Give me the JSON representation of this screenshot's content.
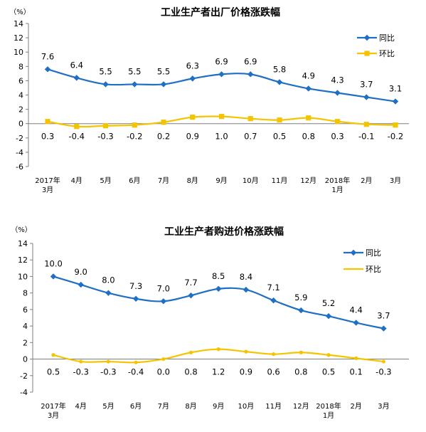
{
  "chart_data": [
    {
      "type": "line",
      "title": "工业生产者出厂价格涨跌幅",
      "unit_label": "（%）",
      "categories": [
        [
          "2017年",
          "3月"
        ],
        [
          "4月"
        ],
        [
          "5月"
        ],
        [
          "6月"
        ],
        [
          "7月"
        ],
        [
          "8月"
        ],
        [
          "9月"
        ],
        [
          "10月"
        ],
        [
          "11月"
        ],
        [
          "12月"
        ],
        [
          "2018年",
          "1月"
        ],
        [
          "2月"
        ],
        [
          "3月"
        ]
      ],
      "ylim": [
        -6,
        14
      ],
      "yticks": [
        -6,
        -4,
        -2,
        0,
        2,
        4,
        6,
        8,
        10,
        12,
        14
      ],
      "legend_position": "top-right",
      "series": [
        {
          "name": "同比",
          "color": "#1f6fc4",
          "marker": "diamond",
          "values": [
            7.6,
            6.4,
            5.5,
            5.5,
            5.5,
            6.3,
            6.9,
            6.9,
            5.8,
            4.9,
            4.3,
            3.7,
            3.1
          ],
          "labels": [
            "7.6",
            "6.4",
            "5.5",
            "5.5",
            "5.5",
            "6.3",
            "6.9",
            "6.9",
            "5.8",
            "4.9",
            "4.3",
            "3.7",
            "3.1"
          ]
        },
        {
          "name": "环比",
          "color": "#f5c400",
          "marker": "square",
          "values": [
            0.3,
            -0.4,
            -0.3,
            -0.2,
            0.2,
            0.9,
            1.0,
            0.7,
            0.5,
            0.8,
            0.3,
            -0.1,
            -0.2
          ],
          "labels": [
            "0.3",
            "-0.4",
            "-0.3",
            "-0.2",
            "0.2",
            "0.9",
            "1.0",
            "0.7",
            "0.5",
            "0.8",
            "0.3",
            "-0.1",
            "-0.2"
          ]
        }
      ]
    },
    {
      "type": "line",
      "title": "工业生产者购进价格涨跌幅",
      "unit_label": "（%）",
      "categories": [
        [
          "2017年",
          "3月"
        ],
        [
          "4月"
        ],
        [
          "5月"
        ],
        [
          "6月"
        ],
        [
          "7月"
        ],
        [
          "8月"
        ],
        [
          "9月"
        ],
        [
          "10月"
        ],
        [
          "11月"
        ],
        [
          "12月"
        ],
        [
          "2018年",
          "1月"
        ],
        [
          "2月"
        ],
        [
          "3月"
        ]
      ],
      "ylim": [
        -4,
        14
      ],
      "yticks": [
        -4,
        -2,
        0,
        2,
        4,
        6,
        8,
        10,
        12,
        14
      ],
      "legend_position": "top-right",
      "series": [
        {
          "name": "同比",
          "color": "#1f6fc4",
          "marker": "diamond",
          "values": [
            10.0,
            9.0,
            8.0,
            7.3,
            7.0,
            7.7,
            8.5,
            8.4,
            7.1,
            5.9,
            5.2,
            4.4,
            3.7
          ],
          "labels": [
            "10.0",
            "9.0",
            "8.0",
            "7.3",
            "7.0",
            "7.7",
            "8.5",
            "8.4",
            "7.1",
            "5.9",
            "5.2",
            "4.4",
            "3.7"
          ]
        },
        {
          "name": "环比",
          "color": "#f5c400",
          "marker": "line",
          "values": [
            0.5,
            -0.3,
            -0.3,
            -0.4,
            0.0,
            0.8,
            1.2,
            0.9,
            0.6,
            0.8,
            0.5,
            0.1,
            -0.3
          ],
          "labels": [
            "0.5",
            "-0.3",
            "-0.3",
            "-0.4",
            "0.0",
            "0.8",
            "1.2",
            "0.9",
            "0.6",
            "0.8",
            "0.5",
            "0.1",
            "-0.3"
          ]
        }
      ]
    }
  ]
}
